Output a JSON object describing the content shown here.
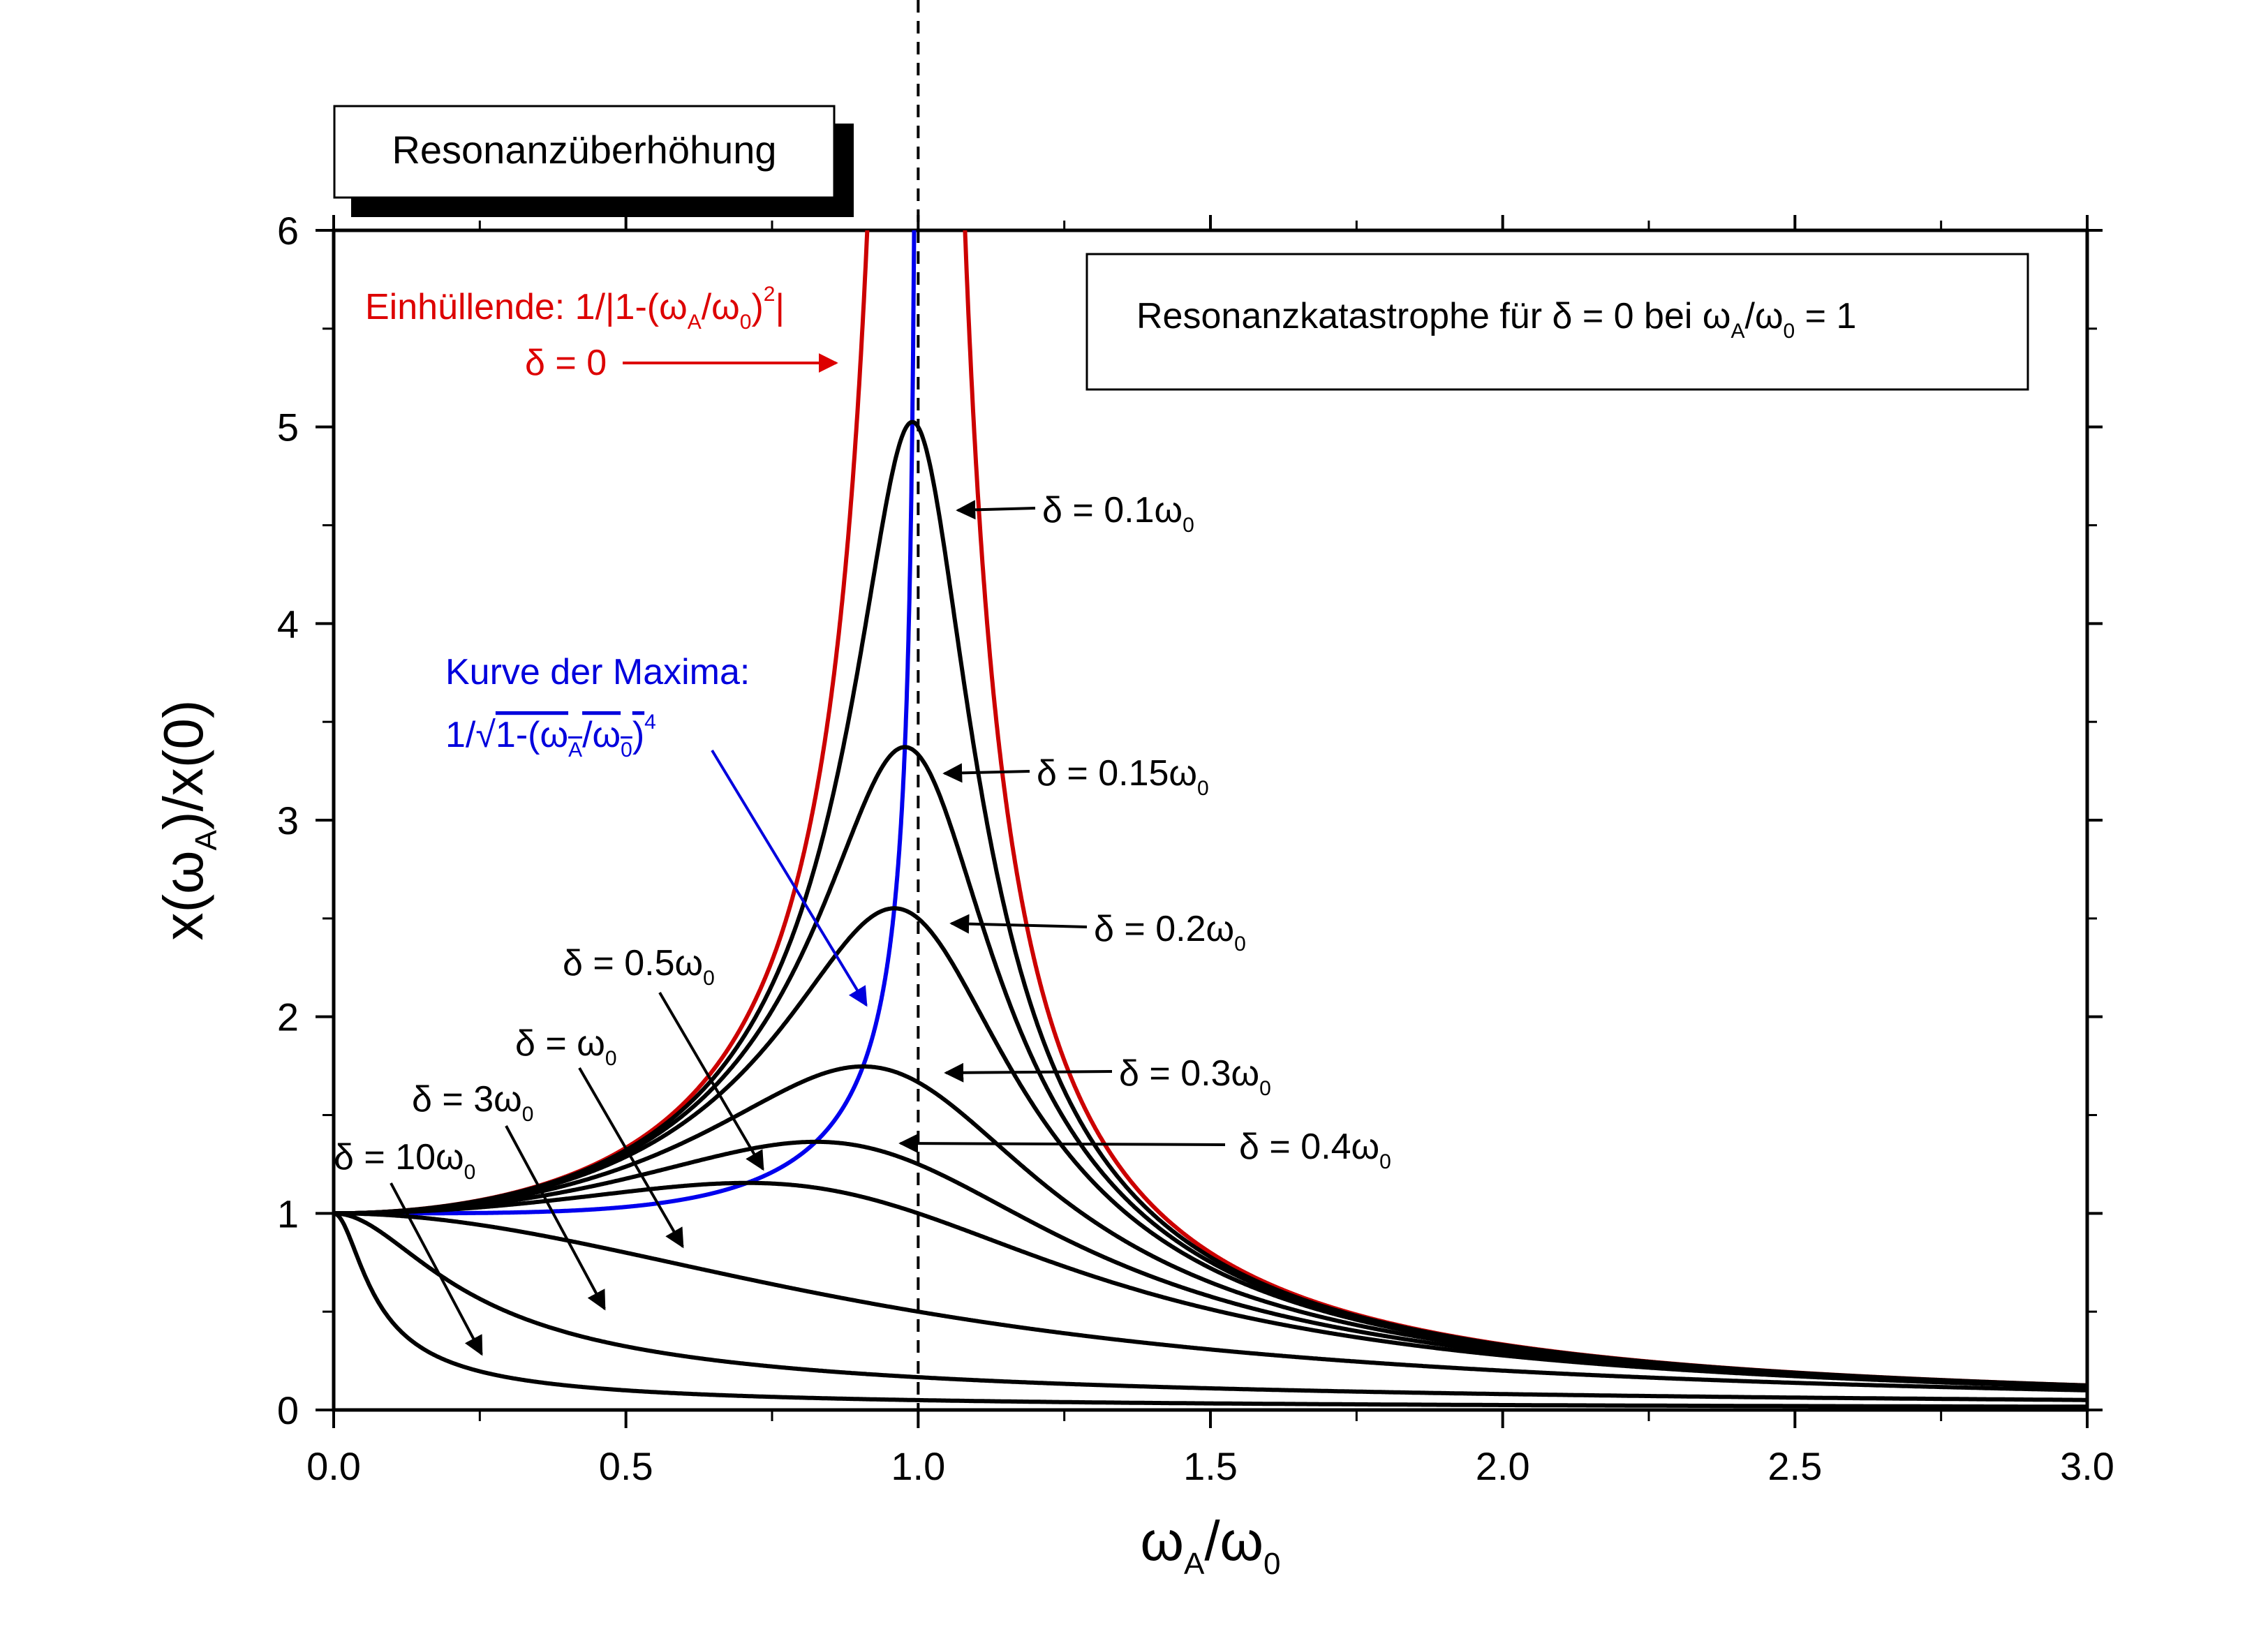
{
  "chart_data": {
    "type": "line",
    "title": "Resonanzüberhöhung",
    "xlabel": "ωA/ω0",
    "ylabel": "x(ωA)/x(0)",
    "xlim": [
      0,
      3.0
    ],
    "ylim": [
      0,
      6
    ],
    "x_ticks": [
      "0.0",
      "0.5",
      "1.0",
      "1.5",
      "2.0",
      "2.5",
      "3.0"
    ],
    "y_ticks": [
      "0",
      "1",
      "2",
      "3",
      "4",
      "5",
      "6"
    ],
    "vertical_reference_line": 1.0,
    "annotation_box": "Resonanzkatastrophe für δ = 0 bei ωA/ω0 = 1",
    "envelope_label": "Einhüllende: 1/|1-(ωA/ω0)²|",
    "envelope_arrow_label": "δ = 0",
    "maxima_label": "Kurve der Maxima:",
    "maxima_formula": "1/√1-(ωA/ω0)⁴",
    "colors": {
      "envelope": "#cc0000",
      "maxima": "#0000ee",
      "damped": "#000000",
      "frame": "#000000"
    },
    "series": [
      {
        "delta": 0,
        "role": "envelope",
        "label": "δ = 0"
      },
      {
        "delta": null,
        "role": "maxima"
      },
      {
        "delta": 0.1,
        "label": "δ = 0.1ω0",
        "peak": [
          0.99,
          5.02
        ]
      },
      {
        "delta": 0.15,
        "label": "δ = 0.15ω0",
        "peak": [
          0.977,
          3.37
        ]
      },
      {
        "delta": 0.2,
        "label": "δ = 0.2ω0",
        "peak": [
          0.96,
          2.55
        ]
      },
      {
        "delta": 0.3,
        "label": "δ = 0.3ω0",
        "peak": [
          0.906,
          1.75
        ]
      },
      {
        "delta": 0.4,
        "label": "δ = 0.4ω0",
        "peak": [
          0.83,
          1.36
        ]
      },
      {
        "delta": 0.5,
        "label": "δ = 0.5ω0",
        "peak": [
          0.707,
          1.15
        ]
      },
      {
        "delta": 1,
        "label": "δ = ω0"
      },
      {
        "delta": 3,
        "label": "δ = 3ω0"
      },
      {
        "delta": 10,
        "label": "δ = 10ω0"
      }
    ]
  }
}
